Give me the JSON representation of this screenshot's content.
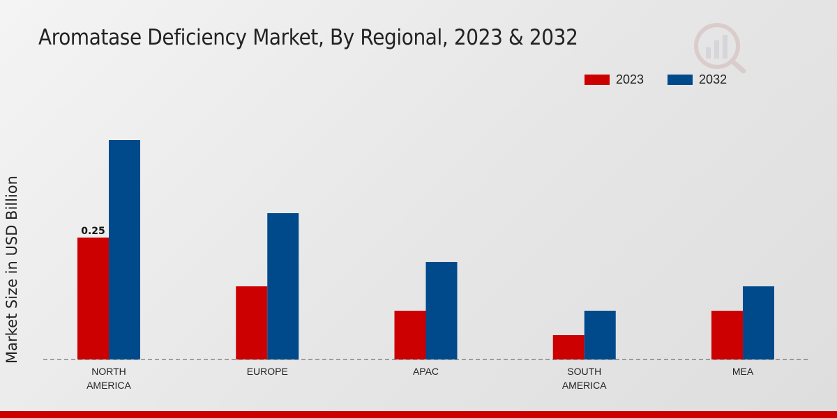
{
  "chart_data": {
    "type": "bar",
    "title": "Aromatase Deficiency Market, By Regional, 2023 & 2032",
    "xlabel": "",
    "ylabel": "Market Size in USD Billion",
    "categories": [
      "NORTH AMERICA",
      "EUROPE",
      "APAC",
      "SOUTH AMERICA",
      "MEA"
    ],
    "category_lines": [
      [
        "NORTH",
        "AMERICA"
      ],
      [
        "EUROPE"
      ],
      [
        "APAC"
      ],
      [
        "SOUTH",
        "AMERICA"
      ],
      [
        "MEA"
      ]
    ],
    "series": [
      {
        "name": "2023",
        "color": "#cc0000",
        "values": [
          0.25,
          0.15,
          0.1,
          0.05,
          0.1
        ]
      },
      {
        "name": "2032",
        "color": "#004a8c",
        "values": [
          0.45,
          0.3,
          0.2,
          0.1,
          0.15
        ]
      }
    ],
    "data_labels": [
      {
        "series": 0,
        "index": 0,
        "text": "0.25"
      }
    ],
    "ylim": [
      0,
      0.5
    ],
    "grid": false,
    "legend_position": "top-right"
  }
}
